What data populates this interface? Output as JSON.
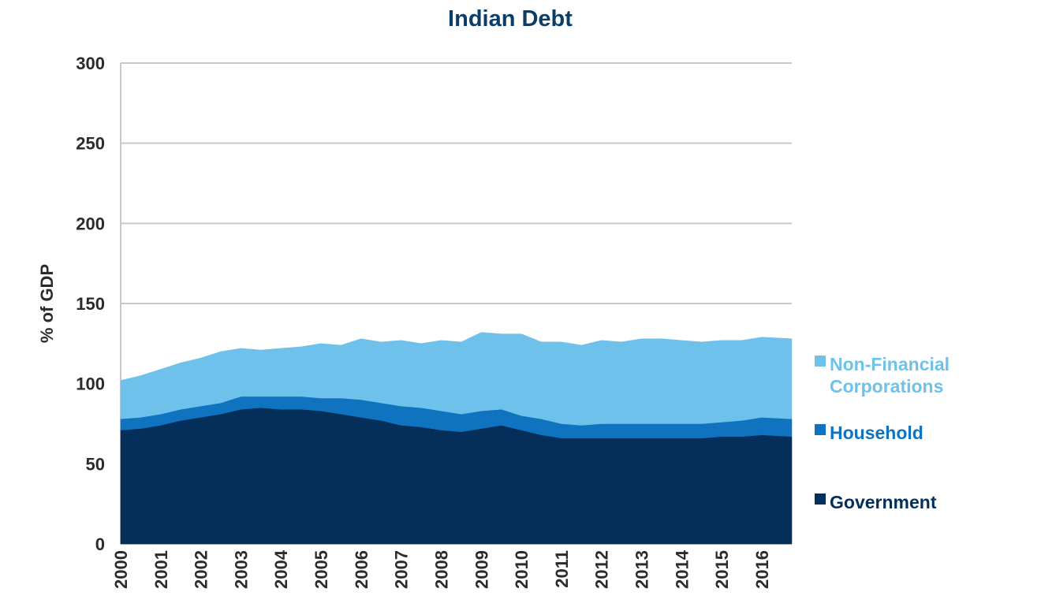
{
  "chart_data": {
    "type": "area",
    "stacked": true,
    "title": "Indian Debt",
    "ylabel": "% of GDP",
    "xlabel": "",
    "ylim": [
      0,
      300
    ],
    "xlim": [
      2000,
      2016.75
    ],
    "y_ticks": [
      "0",
      "50",
      "100",
      "150",
      "200",
      "250",
      "300"
    ],
    "x_ticks": [
      "2000",
      "2001",
      "2002",
      "2003",
      "2004",
      "2005",
      "2006",
      "2007",
      "2008",
      "2009",
      "2010",
      "2011",
      "2012",
      "2013",
      "2014",
      "2015",
      "2016"
    ],
    "grid": true,
    "legend_position": "right",
    "x": [
      2000,
      2000.5,
      2001,
      2001.5,
      2002,
      2002.5,
      2003,
      2003.5,
      2004,
      2004.5,
      2005,
      2005.5,
      2006,
      2006.5,
      2007,
      2007.5,
      2008,
      2008.5,
      2009,
      2009.5,
      2010,
      2010.5,
      2011,
      2011.5,
      2012,
      2012.5,
      2013,
      2013.5,
      2014,
      2014.5,
      2015,
      2015.5,
      2016,
      2016.75
    ],
    "series": [
      {
        "name": "Government",
        "color": "#032f5a",
        "values": [
          71,
          72,
          74,
          77,
          79,
          81,
          84,
          85,
          84,
          84,
          83,
          81,
          79,
          77,
          74,
          73,
          71,
          70,
          72,
          74,
          71,
          68,
          66,
          66,
          66,
          66,
          66,
          66,
          66,
          66,
          67,
          67,
          68,
          67
        ]
      },
      {
        "name": "Household",
        "color": "#0f73bf",
        "values": [
          7,
          7,
          7,
          7,
          7,
          7,
          8,
          7,
          8,
          8,
          8,
          10,
          11,
          11,
          12,
          12,
          12,
          11,
          11,
          10,
          9,
          10,
          9,
          8,
          9,
          9,
          9,
          9,
          9,
          9,
          9,
          10,
          11,
          11
        ]
      },
      {
        "name": "Non-Financial Corporations",
        "color": "#6ec1ea",
        "values": [
          24,
          26,
          28,
          29,
          30,
          32,
          30,
          29,
          30,
          31,
          34,
          33,
          38,
          38,
          41,
          40,
          44,
          45,
          49,
          47,
          51,
          48,
          51,
          50,
          52,
          51,
          53,
          53,
          52,
          51,
          51,
          50,
          50,
          50
        ]
      }
    ]
  },
  "legend": {
    "corp_line1": "Non-Financial",
    "corp_line2": "Corporations",
    "household": "Household",
    "government": "Government"
  }
}
